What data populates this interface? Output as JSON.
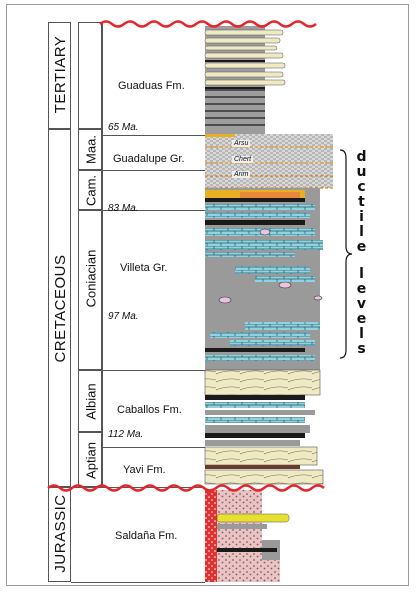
{
  "eras": {
    "tertiary": "TERTIARY",
    "cretaceous": "CRETACEOUS",
    "jurassic": "JURASSIC"
  },
  "stages": {
    "maa": "Maa.",
    "cam": "Cam.",
    "coniacian": "Coniacian",
    "albian": "Albian",
    "aptian": "Aptian"
  },
  "formations": {
    "guaduas": "Guaduas Fm.",
    "guadalupe": "Guadalupe Gr.",
    "villeta": "Villeta Gr.",
    "caballos": "Caballos Fm.",
    "yavi": "Yavi Fm.",
    "saldana": "Saldaña Fm."
  },
  "ages": {
    "a65": "65 Ma.",
    "a83": "83 Ma.",
    "a97": "97 Ma.",
    "a112": "112 Ma."
  },
  "column_labels": {
    "arsu": "Arsu",
    "chert": "Chert",
    "arim": "Arim"
  },
  "annotation": {
    "lines": [
      "d",
      "u",
      "c",
      "t",
      "i",
      "l",
      "e",
      "",
      "l",
      "e",
      "v",
      "e",
      "l",
      "s"
    ]
  },
  "colors": {
    "unconformity": "#e8232a",
    "limestone": "#8fd3e0",
    "shale": "#9a9a9a",
    "sandstone": "#efe9c4",
    "coal": "#1a1a1a",
    "redbeds": "#e03030"
  }
}
